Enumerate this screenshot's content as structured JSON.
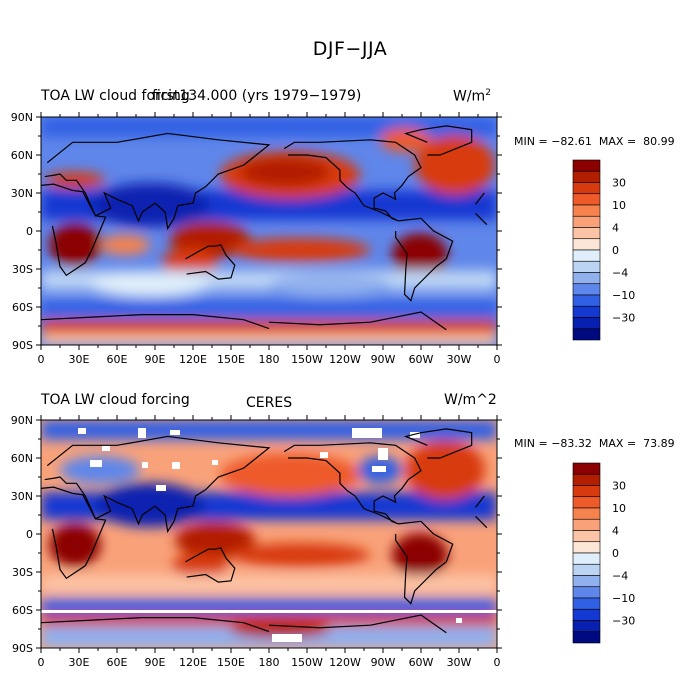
{
  "title": "DJF−JJA",
  "panels": [
    {
      "left_label": "TOA LW cloud forcing",
      "center_label": "first134.000 (yrs 1979−1979)",
      "units": "W/m",
      "units_sup": "2",
      "min": "−82.61",
      "max": "80.99",
      "minmax_prefix_min": "MIN =",
      "minmax_prefix_max": "MAX =",
      "y_ticks": [
        "90N",
        "60N",
        "30N",
        "0",
        "30S",
        "60S",
        "90S"
      ],
      "x_ticks": [
        "0",
        "30E",
        "60E",
        "90E",
        "120E",
        "150E",
        "180",
        "150W",
        "120W",
        "90W",
        "60W",
        "30W",
        "0"
      ]
    },
    {
      "left_label": "TOA LW cloud forcing",
      "center_label": "CERES",
      "units": "W/m^2",
      "min": "−83.32",
      "max": "73.89",
      "minmax_prefix_min": "MIN =",
      "minmax_prefix_max": "MAX =",
      "y_ticks": [
        "90N",
        "60N",
        "30N",
        "0",
        "30S",
        "60S",
        "90S"
      ],
      "x_ticks": [
        "0",
        "30E",
        "60E",
        "90E",
        "120E",
        "150E",
        "180",
        "150W",
        "120W",
        "90W",
        "60W",
        "30W",
        "0"
      ]
    }
  ],
  "colorbar": {
    "labels": [
      "30",
      "10",
      "4",
      "0",
      "−4",
      "−10",
      "−30"
    ],
    "colors": [
      "#8b0000",
      "#b21e00",
      "#d83a10",
      "#ee5a2a",
      "#f6824e",
      "#f9a27a",
      "#fcc4a6",
      "#fde6d6",
      "#dfeefa",
      "#bcd4f4",
      "#90b0ee",
      "#5f86ea",
      "#3060e4",
      "#1438d2",
      "#0820b0",
      "#000a80"
    ]
  },
  "chart_data": [
    {
      "type": "heatmap",
      "title": "DJF−JJA",
      "subtitle": "first134.000 (yrs 1979−1979)",
      "variable": "TOA LW cloud forcing",
      "units": "W/m2",
      "x_range": [
        0,
        360
      ],
      "y_range": [
        -90,
        90
      ],
      "min": -82.61,
      "max": 80.99,
      "levels": [
        -40,
        -30,
        -20,
        -15,
        -10,
        -7,
        -4,
        -2,
        0,
        2,
        4,
        7,
        10,
        15,
        20,
        30,
        40
      ]
    },
    {
      "type": "heatmap",
      "title": "DJF−JJA",
      "subtitle": "CERES",
      "variable": "TOA LW cloud forcing",
      "units": "W/m^2",
      "x_range": [
        0,
        360
      ],
      "y_range": [
        -90,
        90
      ],
      "min": -83.32,
      "max": 73.89,
      "levels": [
        -40,
        -30,
        -20,
        -15,
        -10,
        -7,
        -4,
        -2,
        0,
        2,
        4,
        7,
        10,
        15,
        20,
        30,
        40
      ]
    }
  ]
}
